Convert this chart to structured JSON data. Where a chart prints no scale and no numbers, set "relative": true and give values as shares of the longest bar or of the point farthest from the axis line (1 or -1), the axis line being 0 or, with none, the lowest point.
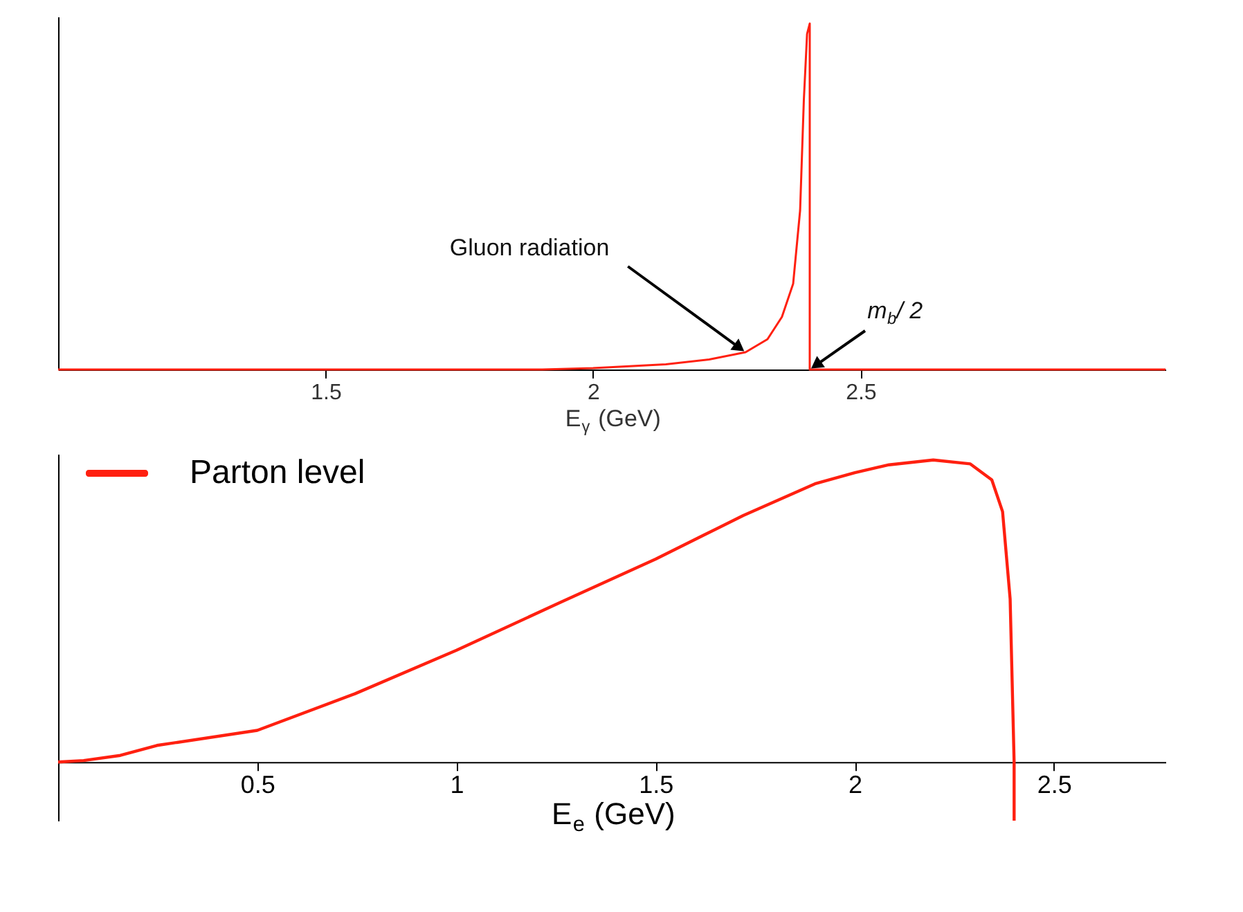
{
  "chart_data": [
    {
      "type": "line",
      "xlabel": "E$_{γ}$ (GeV)",
      "relative": true,
      "xlim": [
        1.0,
        3.07
      ],
      "xticks": [
        1.5,
        2,
        2.5
      ],
      "x": [
        1.0,
        1.905,
        2.0,
        2.136,
        2.217,
        2.285,
        2.326,
        2.353,
        2.374,
        2.387,
        2.394,
        2.4,
        2.405,
        2.405,
        3.07
      ],
      "series": [
        {
          "color": "#ff2010",
          "values": [
            0,
            0,
            0.004,
            0.015,
            0.029,
            0.05,
            0.0875,
            0.152,
            0.248,
            0.46,
            0.78,
            0.97,
            1,
            0,
            0
          ]
        }
      ],
      "annotations": [
        {
          "text": "Gluon radiation",
          "x": 2.285,
          "y": 0.05
        },
        {
          "text": "m$_{b}$/ 2",
          "x": 2.405,
          "y": 0
        }
      ]
    },
    {
      "type": "line",
      "xlabel": "E$_{e}$ (GeV)",
      "relative": true,
      "xlim": [
        0,
        2.78
      ],
      "xticks": [
        0.5,
        1,
        1.5,
        2,
        2.5
      ],
      "legend": "top left",
      "x": [
        0,
        0.064,
        0.156,
        0.248,
        0.5,
        0.745,
        1.0,
        1.26,
        1.5,
        1.72,
        1.9,
        2.0,
        2.086,
        2.197,
        2.29,
        2.344,
        2.371,
        2.39,
        2.4,
        2.4
      ],
      "series": [
        {
          "name": "Parton level",
          "color": "#ff2010",
          "values": [
            0,
            0.005,
            0.022,
            0.055,
            0.105,
            0.226,
            0.37,
            0.528,
            0.672,
            0.816,
            0.921,
            0.958,
            0.984,
            1.0,
            0.987,
            0.934,
            0.829,
            0.54,
            0,
            -0.194
          ]
        }
      ]
    }
  ]
}
